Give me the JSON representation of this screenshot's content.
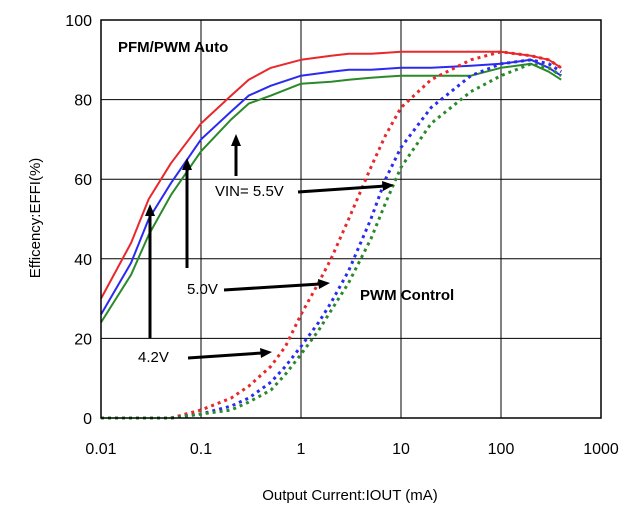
{
  "chart_data": {
    "type": "line",
    "title": "",
    "xlabel": "Output Current:IOUT (mA)",
    "ylabel": "Efficency:EFFI(%)",
    "x_scale": "log",
    "xlim": [
      0.01,
      1000
    ],
    "ylim": [
      0,
      100
    ],
    "x_ticks": [
      "0.01",
      "0.1",
      "1",
      "10",
      "100",
      "1000"
    ],
    "y_ticks": [
      "0",
      "20",
      "40",
      "60",
      "80",
      "100"
    ],
    "grid": true,
    "annotations": {
      "mode_auto": "PFM/PWM Auto",
      "mode_pwm": "PWM Control",
      "vin_55": "VIN= 5.5V",
      "vin_50": "5.0V",
      "vin_42": "4.2V"
    },
    "series": [
      {
        "color": "#e8282b",
        "style": "solid",
        "x": [
          0.01,
          0.02,
          0.03,
          0.05,
          0.1,
          0.2,
          0.3,
          0.5,
          1,
          2,
          3,
          5,
          10,
          20,
          50,
          100,
          200,
          300,
          400
        ],
        "y": [
          30,
          44,
          55,
          64,
          74,
          81,
          85,
          88,
          90,
          91,
          91.5,
          91.5,
          92,
          92,
          92,
          92,
          91,
          90,
          88
        ]
      },
      {
        "color": "#2b2bf0",
        "style": "solid",
        "x": [
          0.01,
          0.02,
          0.03,
          0.05,
          0.1,
          0.2,
          0.3,
          0.5,
          1,
          2,
          3,
          5,
          10,
          20,
          50,
          100,
          200,
          300,
          400
        ],
        "y": [
          26,
          39,
          50,
          59,
          70,
          77,
          81,
          83.5,
          86,
          87,
          87.5,
          87.5,
          88,
          88,
          88.5,
          89,
          90,
          88,
          86
        ]
      },
      {
        "color": "#2a8a2a",
        "style": "solid",
        "x": [
          0.01,
          0.02,
          0.03,
          0.05,
          0.1,
          0.2,
          0.3,
          0.5,
          1,
          2,
          3,
          5,
          10,
          20,
          50,
          100,
          200,
          300,
          400
        ],
        "y": [
          24,
          36,
          46,
          56,
          67,
          75,
          79,
          81,
          84,
          84.5,
          85,
          85.5,
          86,
          86,
          86,
          88,
          89,
          87,
          85
        ]
      },
      {
        "color": "#e8282b",
        "style": "dotted",
        "x": [
          0.01,
          0.05,
          0.1,
          0.2,
          0.3,
          0.5,
          0.7,
          1,
          1.5,
          2,
          3,
          5,
          7,
          10,
          20,
          50,
          100,
          200,
          300,
          400
        ],
        "y": [
          0,
          0,
          2,
          5,
          8,
          13,
          18,
          26,
          34,
          40,
          50,
          63,
          71,
          78,
          85,
          90,
          92,
          91,
          90,
          88
        ]
      },
      {
        "color": "#2b2bf0",
        "style": "dotted",
        "x": [
          0.01,
          0.05,
          0.1,
          0.2,
          0.3,
          0.5,
          0.7,
          1,
          1.5,
          2,
          3,
          5,
          7,
          10,
          20,
          50,
          100,
          200,
          300,
          400
        ],
        "y": [
          0,
          0,
          1,
          3,
          5,
          9,
          13,
          18,
          24,
          29,
          37,
          50,
          60,
          68,
          78,
          86,
          89,
          90,
          89,
          87
        ]
      },
      {
        "color": "#2a8a2a",
        "style": "dotted",
        "x": [
          0.01,
          0.05,
          0.1,
          0.2,
          0.3,
          0.5,
          0.7,
          1,
          1.5,
          2,
          3,
          5,
          7,
          10,
          20,
          50,
          100,
          200,
          300,
          400
        ],
        "y": [
          0,
          0,
          1,
          2,
          4,
          7,
          11,
          16,
          22,
          27,
          34,
          45,
          54,
          63,
          74,
          82,
          86,
          89,
          88,
          86
        ]
      }
    ]
  }
}
